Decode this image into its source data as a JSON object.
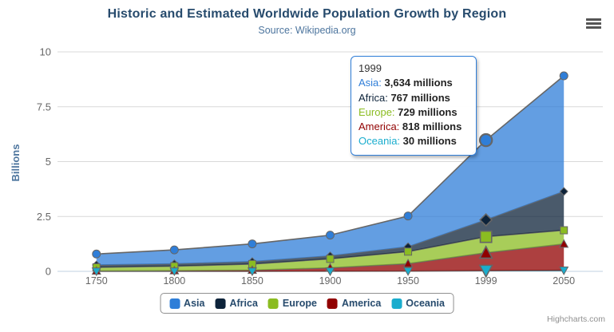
{
  "title": "Historic and Estimated Worldwide Population Growth by Region",
  "subtitle": "Source: Wikipedia.org",
  "credits": "Highcharts.com",
  "context_menu": {
    "icon": "hamburger-icon"
  },
  "theme": {
    "title_color": "#274b6d",
    "subtitle_color": "#4d759e",
    "axis_label_color": "#666666",
    "y_axis_title_color": "#4d759e",
    "grid_color": "#d8d8d8",
    "x_axis_line_color": "#c0d0e0",
    "series_line_color": "#666666",
    "legend_border_color": "#909090",
    "legend_text_color": "#274b6d",
    "tooltip_border_color": "#2f7ed8",
    "area_fill_opacity": 0.75
  },
  "chart_data": {
    "type": "area",
    "stacking": "normal",
    "title": "Historic and Estimated Worldwide Population Growth by Region",
    "subtitle": "Source: Wikipedia.org",
    "xlabel": "",
    "ylabel": "Billions",
    "unit": "millions",
    "ylim": [
      0,
      10
    ],
    "yticks": [
      "0",
      "2.5",
      "5",
      "7.5",
      "10"
    ],
    "grid": true,
    "legend_position": "bottom-center",
    "categories": [
      "1750",
      "1800",
      "1850",
      "1900",
      "1950",
      "1999",
      "2050"
    ],
    "series": [
      {
        "name": "Asia",
        "color": "#2f7ed8",
        "marker": "circle",
        "values": [
          502,
          635,
          809,
          947,
          1402,
          3634,
          5268
        ]
      },
      {
        "name": "Africa",
        "color": "#0d233a",
        "marker": "diamond",
        "values": [
          106,
          107,
          111,
          133,
          221,
          767,
          1766
        ]
      },
      {
        "name": "Europe",
        "color": "#8bbc21",
        "marker": "square",
        "values": [
          163,
          203,
          276,
          408,
          547,
          729,
          628
        ]
      },
      {
        "name": "America",
        "color": "#910000",
        "marker": "triangle",
        "values": [
          18,
          31,
          54,
          156,
          339,
          818,
          1201
        ]
      },
      {
        "name": "Oceania",
        "color": "#1aadce",
        "marker": "triangle-down",
        "values": [
          2,
          2,
          2,
          6,
          13,
          30,
          46
        ]
      }
    ],
    "hover_category_index": 5,
    "tooltip": {
      "header": "1999",
      "rows": [
        {
          "name": "Asia",
          "value": "3,634 millions"
        },
        {
          "name": "Africa",
          "value": "767 millions"
        },
        {
          "name": "Europe",
          "value": "729 millions"
        },
        {
          "name": "America",
          "value": "818 millions"
        },
        {
          "name": "Oceania",
          "value": "30 millions"
        }
      ]
    }
  }
}
